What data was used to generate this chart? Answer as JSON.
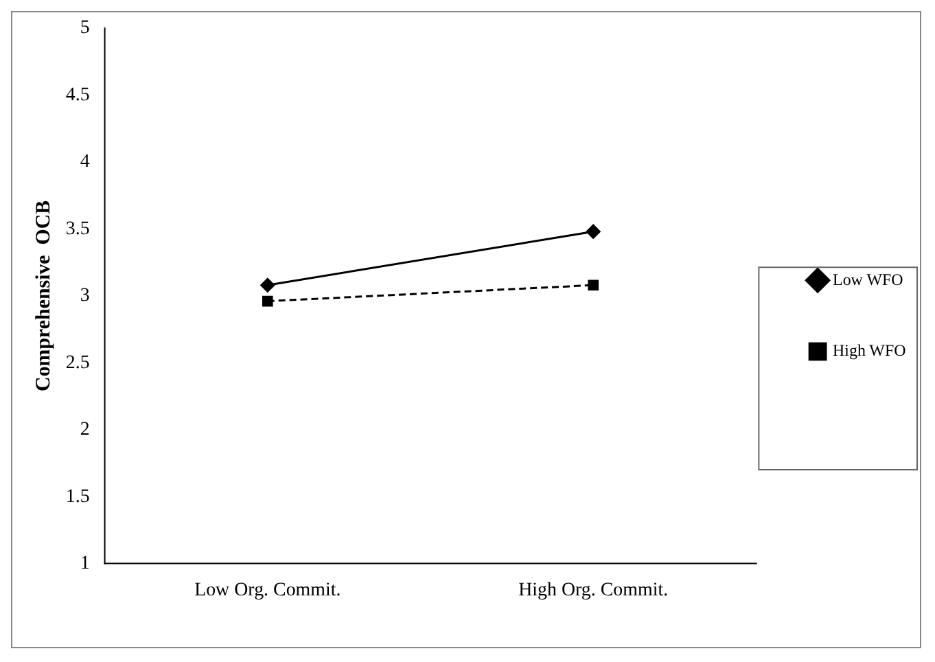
{
  "chart_data": {
    "type": "line",
    "ylabel": "Comprehensive  OCB",
    "categories": [
      "Low Org. Commit.",
      "High Org. Commit."
    ],
    "series": [
      {
        "name": "Low WFO",
        "color": "#000000",
        "values": [
          3.08,
          3.48
        ],
        "marker": "diamond",
        "line_style": "solid"
      },
      {
        "name": "High WFO",
        "color": "#000000",
        "values": [
          2.96,
          3.08
        ],
        "marker": "square",
        "line_style": "dashed"
      }
    ],
    "ylim": [
      1,
      5
    ],
    "yticks": [
      1,
      1.5,
      2,
      2.5,
      3,
      3.5,
      4,
      4.5,
      5
    ],
    "grid": false,
    "legend": "right"
  }
}
